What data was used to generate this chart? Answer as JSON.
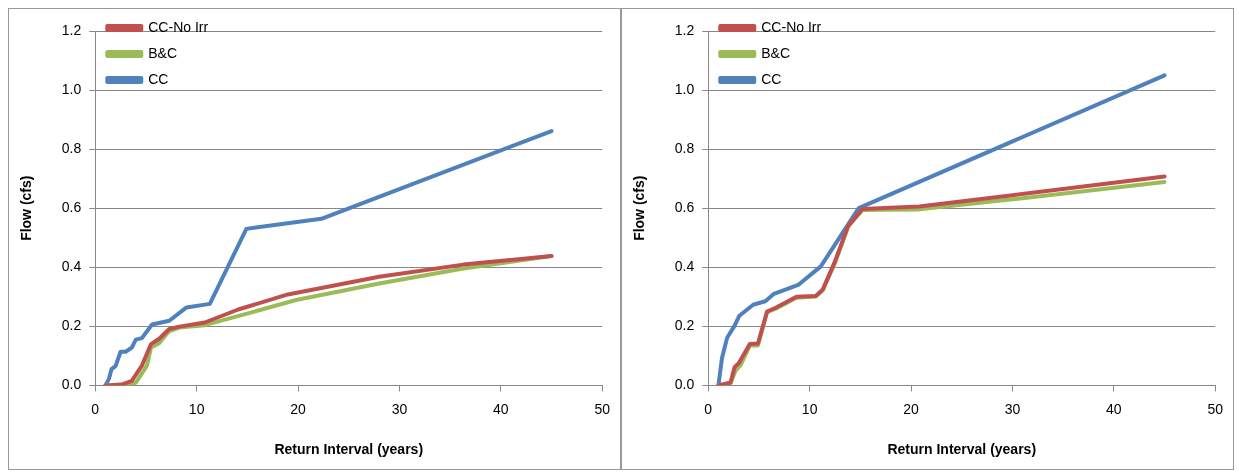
{
  "chart_data": [
    {
      "type": "line",
      "xlabel": "Return Interval (years)",
      "ylabel": "Flow (cfs)",
      "xlim": [
        0,
        50
      ],
      "xticks": [
        0,
        10,
        20,
        30,
        40,
        50
      ],
      "ylim": [
        0,
        1.2
      ],
      "yticks": [
        {
          "value": 0,
          "label": "0.0"
        },
        {
          "value": 0.2,
          "label": "0.2"
        },
        {
          "value": 0.4,
          "label": "0.4"
        },
        {
          "value": 0.6,
          "label": "0.6"
        },
        {
          "value": 0.8,
          "label": "0.8"
        },
        {
          "value": 1,
          "label": "1.0"
        },
        {
          "value": 1.2,
          "label": "1.2"
        }
      ],
      "grid": "y",
      "legend": "top left",
      "marker": "none",
      "line_style": "solid",
      "series": [
        {
          "name": "CC-No Irr",
          "color": "#c0504d",
          "x": [
            1.0,
            2.6,
            3.6,
            4.6,
            5.5,
            6.3,
            7.3,
            8.3,
            10.8,
            14.1,
            19.0,
            22.3,
            28,
            36.3,
            45
          ],
          "values": [
            0,
            0.003,
            0.015,
            0.067,
            0.14,
            0.158,
            0.191,
            0.199,
            0.213,
            0.257,
            0.308,
            0.33,
            0.368,
            0.409,
            0.438
          ]
        },
        {
          "name": "B&C",
          "color": "#9bbb59",
          "x": [
            1.0,
            2.6,
            4.0,
            5.1,
            5.5,
            6.3,
            7.3,
            8.3,
            10.8,
            15.7,
            19.8,
            28,
            36.3,
            45
          ],
          "values": [
            0,
            0,
            0.009,
            0.067,
            0.128,
            0.143,
            0.184,
            0.196,
            0.204,
            0.25,
            0.289,
            0.345,
            0.396,
            0.438
          ]
        },
        {
          "name": "CC",
          "color": "#4f81bd",
          "x": [
            1.0,
            1.36,
            1.6,
            2.0,
            2.5,
            3.0,
            3.6,
            4.0,
            4.6,
            5.6,
            7.3,
            9.0,
            11.3,
            14.9,
            22.3,
            45
          ],
          "values": [
            0,
            0.023,
            0.055,
            0.065,
            0.114,
            0.114,
            0.128,
            0.155,
            0.16,
            0.206,
            0.219,
            0.264,
            0.276,
            0.53,
            0.564,
            0.861
          ]
        }
      ]
    },
    {
      "type": "line",
      "xlabel": "Return Interval (years)",
      "ylabel": "Flow (cfs)",
      "xlim": [
        0,
        50
      ],
      "xticks": [
        0,
        10,
        20,
        30,
        40,
        50
      ],
      "ylim": [
        0,
        1.2
      ],
      "yticks": [
        {
          "value": 0,
          "label": "0.0"
        },
        {
          "value": 0.2,
          "label": "0.2"
        },
        {
          "value": 0.4,
          "label": "0.4"
        },
        {
          "value": 0.6,
          "label": "0.6"
        },
        {
          "value": 0.8,
          "label": "0.8"
        },
        {
          "value": 1,
          "label": "1.0"
        },
        {
          "value": 1.2,
          "label": "1.2"
        }
      ],
      "grid": "y",
      "legend": "top left",
      "marker": "none",
      "line_style": "solid",
      "series": [
        {
          "name": "CC-No Irr",
          "color": "#c0504d",
          "x": [
            1.0,
            2.2,
            2.6,
            3.0,
            4.1,
            4.9,
            5.8,
            6.65,
            8.7,
            10.6,
            11.3,
            12.5,
            13.8,
            15.2,
            20.8,
            30,
            45
          ],
          "values": [
            0,
            0.01,
            0.062,
            0.075,
            0.14,
            0.142,
            0.25,
            0.263,
            0.3,
            0.303,
            0.325,
            0.42,
            0.54,
            0.597,
            0.606,
            0.644,
            0.707
          ]
        },
        {
          "name": "B&C",
          "color": "#9bbb59",
          "x": [
            1.0,
            2.2,
            2.7,
            3.2,
            4.1,
            4.9,
            5.8,
            6.65,
            8.7,
            10.6,
            11.3,
            12.5,
            13.8,
            15.2,
            20.8,
            30,
            45
          ],
          "values": [
            0,
            0.007,
            0.05,
            0.069,
            0.135,
            0.135,
            0.248,
            0.26,
            0.297,
            0.301,
            0.322,
            0.415,
            0.538,
            0.594,
            0.596,
            0.63,
            0.689
          ]
        },
        {
          "name": "CC",
          "color": "#4f81bd",
          "x": [
            1.0,
            1.36,
            1.87,
            2.56,
            3.07,
            4.43,
            5.63,
            6.48,
            8.87,
            11.1,
            14.84,
            45
          ],
          "values": [
            0,
            0.094,
            0.162,
            0.2,
            0.236,
            0.273,
            0.285,
            0.31,
            0.34,
            0.403,
            0.6,
            1.05
          ]
        }
      ]
    }
  ]
}
